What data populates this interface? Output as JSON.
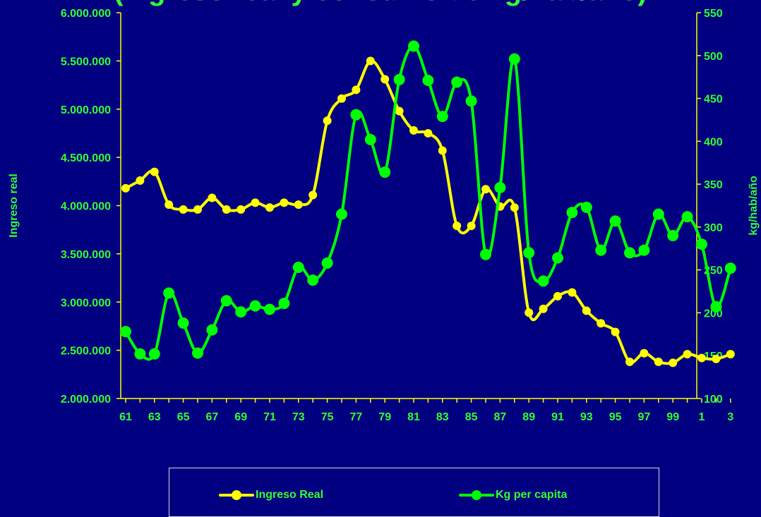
{
  "chart_data": {
    "type": "line",
    "title": "(Ingreso real y consumo de kg/hab/año)",
    "x": [
      "61",
      "62",
      "63",
      "64",
      "65",
      "66",
      "67",
      "68",
      "69",
      "70",
      "71",
      "72",
      "73",
      "74",
      "75",
      "76",
      "77",
      "78",
      "79",
      "80",
      "81",
      "82",
      "83",
      "84",
      "85",
      "86",
      "87",
      "88",
      "89",
      "90",
      "91",
      "92",
      "93",
      "94",
      "95",
      "96",
      "97",
      "98",
      "99",
      "0",
      "1",
      "2",
      "3"
    ],
    "xtick_labels": [
      "61",
      "63",
      "65",
      "67",
      "69",
      "71",
      "73",
      "75",
      "77",
      "79",
      "81",
      "83",
      "85",
      "87",
      "89",
      "91",
      "93",
      "95",
      "97",
      "99",
      "1",
      "3"
    ],
    "y_left": {
      "label": "Ingreso real",
      "lim": [
        2000000,
        6000000
      ],
      "ticks": [
        "2.000.000",
        "2.500.000",
        "3.000.000",
        "3.500.000",
        "4.000.000",
        "4.500.000",
        "5.000.000",
        "5.500.000",
        "6.000.000"
      ]
    },
    "y_right": {
      "label": "kg/hab/año",
      "lim": [
        100,
        550
      ],
      "ticks": [
        "100",
        "150",
        "200",
        "250",
        "300",
        "350",
        "400",
        "450",
        "500",
        "550"
      ]
    },
    "series": [
      {
        "name": "Ingreso Real",
        "axis": "left",
        "color": "#ffff00",
        "values": [
          4180000,
          4260000,
          4350000,
          4010000,
          3960000,
          3960000,
          4080000,
          3960000,
          3960000,
          4030000,
          3980000,
          4030000,
          4010000,
          4110000,
          4880000,
          5110000,
          5200000,
          5500000,
          5310000,
          4980000,
          4780000,
          4750000,
          4570000,
          3790000,
          3790000,
          4170000,
          3990000,
          3980000,
          2890000,
          2930000,
          3060000,
          3100000,
          2910000,
          2780000,
          2690000,
          2380000,
          2470000,
          2380000,
          2370000,
          2460000,
          2420000,
          2410000,
          2460000
        ]
      },
      {
        "name": "Kg per capita",
        "axis": "right",
        "color": "#00ff00",
        "values": [
          178,
          152,
          152,
          223,
          188,
          153,
          180,
          214,
          201,
          208,
          204,
          211,
          253,
          238,
          258,
          315,
          431,
          402,
          364,
          472,
          511,
          471,
          429,
          469,
          447,
          268,
          346,
          496,
          270,
          237,
          264,
          317,
          323,
          273,
          307,
          270,
          273,
          315,
          290,
          312,
          280,
          207,
          252
        ]
      }
    ],
    "grid": false,
    "legend": "bottom"
  },
  "legend": {
    "income_label": "Ingreso Real",
    "kg_label": "Kg per capita"
  }
}
